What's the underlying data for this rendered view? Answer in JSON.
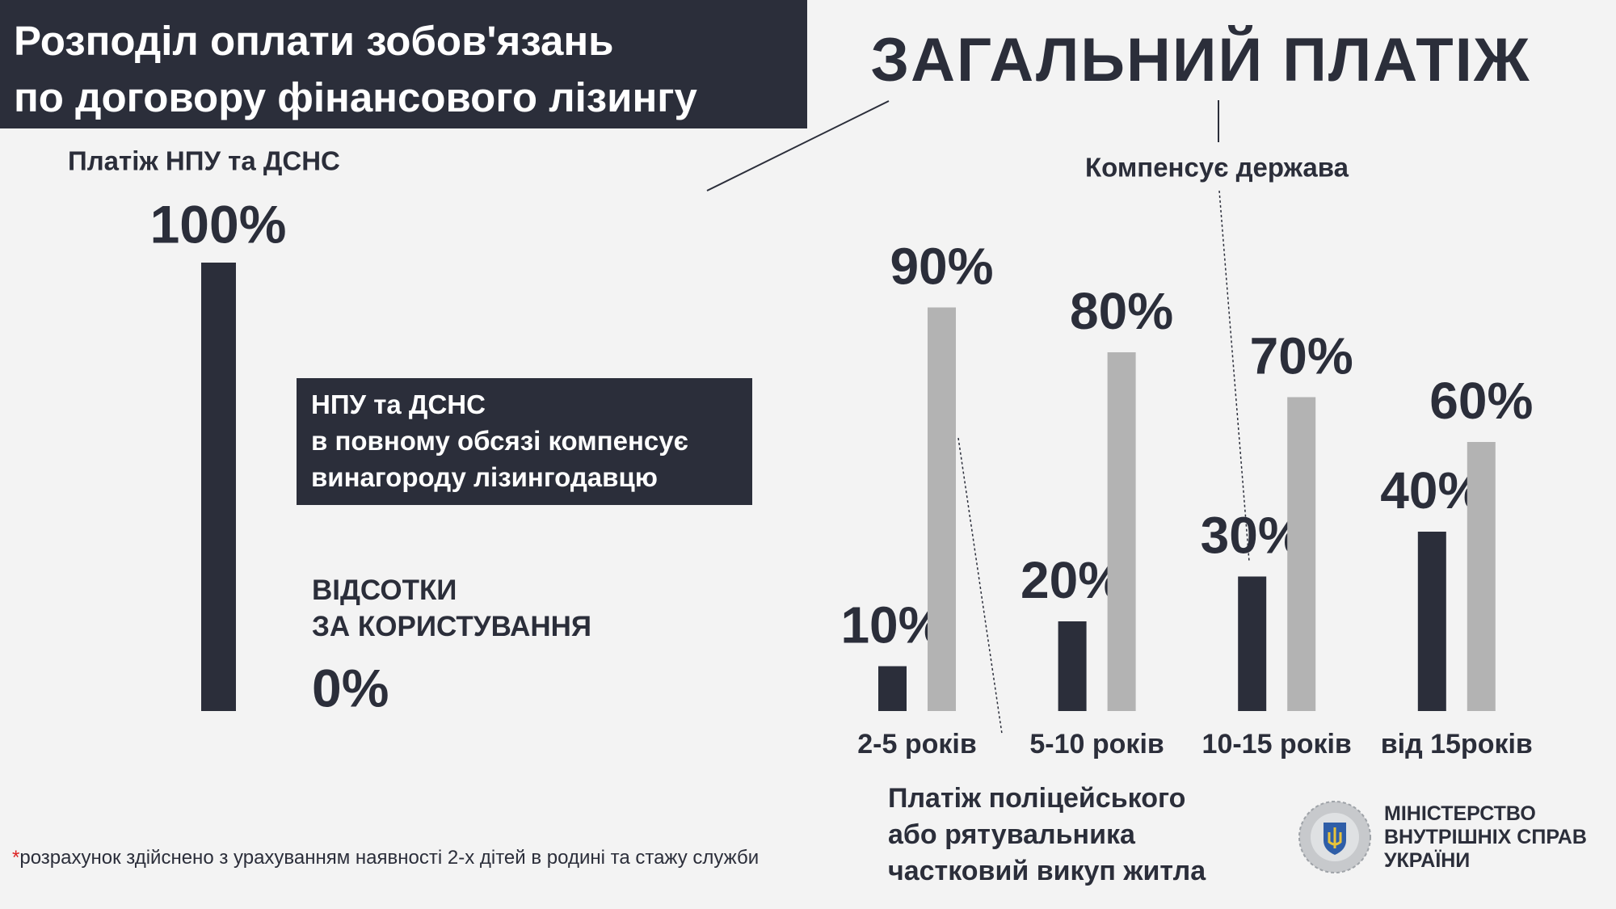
{
  "title": "Розподіл оплати зобов'язань\nпо договору фінансового лізингу",
  "heading": "ЗАГАЛЬНИЙ ПЛАТІЖ",
  "chart_data": [
    {
      "type": "bar",
      "categories": [
        "Платіж НПУ та ДСНС",
        "ВІДСОТКИ\nЗА КОРИСТУВАННЯ"
      ],
      "values": [
        100,
        0
      ],
      "value_labels": [
        "100%",
        "0%"
      ],
      "color": "#2b2e3a",
      "ylim": [
        0,
        100
      ],
      "note": "НПУ та ДСНС\nв повному обсязі компенсує\nвинагороду лізингодавцю"
    },
    {
      "type": "bar",
      "categories": [
        "2-5 років",
        "5-10 років",
        "10-15 років",
        "від 15років"
      ],
      "series": [
        {
          "name": "Платіж поліцейського\nабо рятувальника\nчастковий викуп житла",
          "color": "#2b2e3a",
          "values": [
            10,
            20,
            30,
            40
          ],
          "value_labels": [
            "10%",
            "20%",
            "30%",
            "40%"
          ]
        },
        {
          "name": "Компенсує держава",
          "color": "#b3b3b3",
          "values": [
            90,
            80,
            70,
            60
          ],
          "value_labels": [
            "90%",
            "80%",
            "70%",
            "60%"
          ]
        }
      ],
      "ylim": [
        0,
        100
      ]
    }
  ],
  "footnote": {
    "mark": "*",
    "text": "розрахунок здійснено з урахуванням наявності 2-х дітей в родині та стажу служби"
  },
  "logo": "МІНІСТЕРСТВО\nВНУТРІШНІХ СПРАВ\nУКРАЇНИ"
}
